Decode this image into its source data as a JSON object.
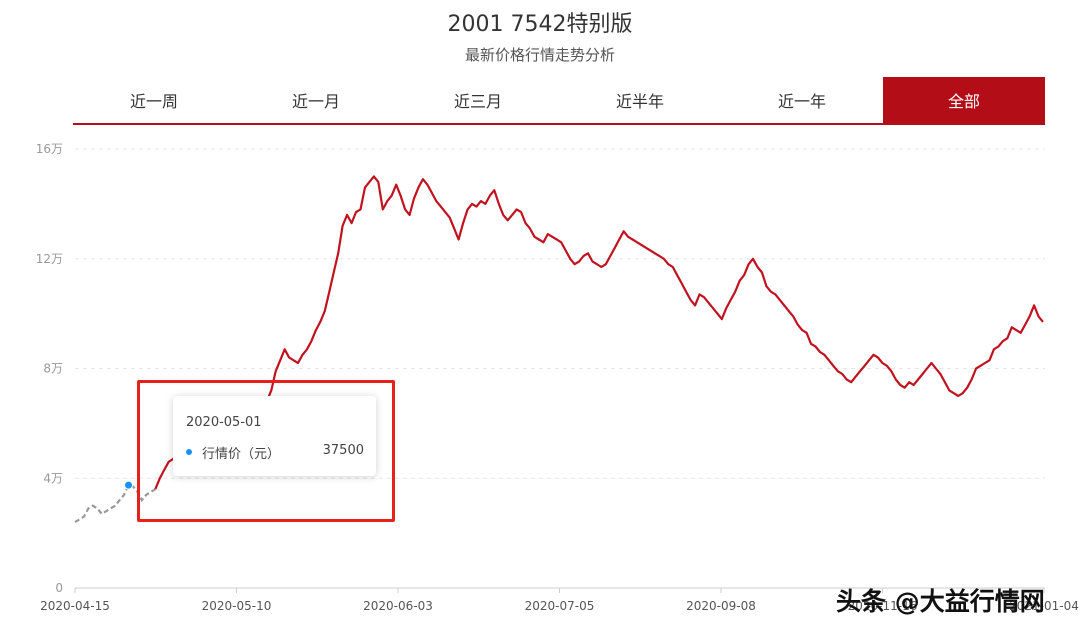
{
  "header": {
    "title": "2001 7542特别版",
    "subtitle": "最新价格行情走势分析"
  },
  "tabs": [
    {
      "label": "近一周",
      "active": false
    },
    {
      "label": "近一月",
      "active": false
    },
    {
      "label": "近三月",
      "active": false
    },
    {
      "label": "近半年",
      "active": false
    },
    {
      "label": "近一年",
      "active": false
    },
    {
      "label": "全部",
      "active": true
    }
  ],
  "tooltip": {
    "date": "2020-05-01",
    "label": "行情价（元）",
    "value": "37500"
  },
  "watermark": "头条 @大益行情网",
  "colors": {
    "accent": "#b30d17",
    "line": "#c1121f",
    "dashed_line": "#999999",
    "tooltip_dot": "#1890ff",
    "highlight": "#e8201a"
  },
  "chart_data": {
    "type": "line",
    "ylim": [
      0,
      160000
    ],
    "yticks": [
      {
        "value": 0,
        "label": "0"
      },
      {
        "value": 40000,
        "label": "4万"
      },
      {
        "value": 80000,
        "label": "8万"
      },
      {
        "value": 120000,
        "label": "12万"
      },
      {
        "value": 160000,
        "label": "16万"
      }
    ],
    "xticks": [
      "2020-04-15",
      "2020-05-10",
      "2020-06-03",
      "2020-07-05",
      "2020-09-08",
      "2020-11-16",
      "2021-01-04"
    ],
    "grid": true,
    "series": [
      {
        "values": [
          24000,
          25000,
          26000,
          29000,
          30000,
          29000,
          27000,
          28000,
          29000,
          30000,
          32000,
          34000,
          37500,
          37000,
          35000,
          32000,
          34000,
          35000,
          36000,
          40000,
          43000,
          46000,
          47000,
          49000,
          50000,
          48000,
          47000,
          49000,
          48000,
          49000,
          50000,
          52000,
          51000,
          49000,
          50000,
          51000,
          52000,
          53000,
          54000,
          56000,
          59000,
          62000,
          64000,
          68000,
          72000,
          79000,
          83000,
          87000,
          84000,
          83000,
          82000,
          85000,
          87000,
          90000,
          94000,
          97000,
          101000,
          108000,
          115000,
          122000,
          132000,
          136000,
          133000,
          137000,
          138000,
          146000,
          148000,
          150000,
          148000,
          138000,
          141000,
          143000,
          147000,
          143000,
          138000,
          136000,
          142000,
          146000,
          149000,
          147000,
          144000,
          141000,
          139000,
          137000,
          135000,
          131000,
          127000,
          133000,
          138000,
          140000,
          139000,
          141000,
          140000,
          143000,
          145000,
          140000,
          136000,
          134000,
          136000,
          138000,
          137000,
          133000,
          131000,
          128000,
          127000,
          126000,
          129000,
          128000,
          127000,
          126000,
          123000,
          120000,
          118000,
          119000,
          121000,
          122000,
          119000,
          118000,
          117000,
          118000,
          121000,
          124000,
          127000,
          130000,
          128000,
          127000,
          126000,
          125000,
          124000,
          123000,
          122000,
          121000,
          120000,
          118000,
          117000,
          114000,
          111000,
          108000,
          105000,
          103000,
          107000,
          106000,
          104000,
          102000,
          100000,
          98000,
          102000,
          105000,
          108000,
          112000,
          114000,
          118000,
          120000,
          117000,
          115000,
          110000,
          108000,
          107000,
          105000,
          103000,
          101000,
          99000,
          96000,
          94000,
          93000,
          89000,
          88000,
          86000,
          85000,
          83000,
          81000,
          79000,
          78000,
          76000,
          75000,
          77000,
          79000,
          81000,
          83000,
          85000,
          84000,
          82000,
          81000,
          79000,
          76000,
          74000,
          73000,
          75000,
          74000,
          76000,
          78000,
          80000,
          82000,
          80000,
          78000,
          75000,
          72000,
          71000,
          70000,
          71000,
          73000,
          76000,
          80000,
          81000,
          82000,
          83000,
          87000,
          88000,
          90000,
          91000,
          95000,
          94000,
          93000,
          96000,
          99000,
          103000,
          99000,
          97000
        ]
      }
    ],
    "highlight_index": 12,
    "dashed_until_index": 18
  }
}
